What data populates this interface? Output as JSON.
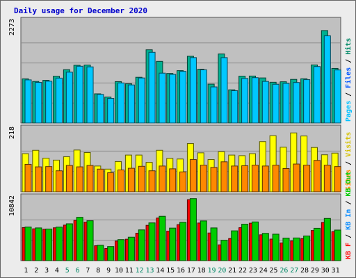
{
  "chart_data": {
    "type": "bar",
    "title": "Daily usage for December 2020",
    "days": [
      "1",
      "2",
      "3",
      "4",
      "5",
      "6",
      "7",
      "8",
      "9",
      "10",
      "11",
      "12",
      "13",
      "14",
      "15",
      "16",
      "17",
      "18",
      "19",
      "20",
      "21",
      "22",
      "23",
      "24",
      "25",
      "26",
      "27",
      "28",
      "29",
      "30",
      "31"
    ],
    "weekend_days": [
      "5",
      "6",
      "12",
      "13",
      "19",
      "20",
      "26",
      "27"
    ],
    "panels": [
      {
        "id": "top",
        "max_label": "2273",
        "ymax": 2273,
        "legend": [
          {
            "text": "Pages",
            "color": "#00c0ff"
          },
          {
            "text": "Files",
            "color": "#0055ff"
          },
          {
            "text": "Hits",
            "color": "#008866"
          }
        ],
        "separator": " / ",
        "series": [
          {
            "name": "Hits",
            "color": "#00b090",
            "values": [
              1003,
              944,
              970,
              1061,
              1212,
              1312,
              1317,
              663,
              590,
              940,
              891,
              1039,
              1663,
              1400,
              1126,
              1190,
              1516,
              1223,
              883,
              1568,
              754,
              1065,
              1067,
              1024,
              926,
              937,
              991,
              1005,
              1320,
              2100,
              1240
            ]
          },
          {
            "name": "Pages",
            "color": "#00c8ff",
            "values": [
              980,
              923,
              950,
              1020,
              1155,
              1290,
              1275,
              650,
              560,
              910,
              865,
              1023,
              1606,
              1133,
              1105,
              1173,
              1486,
              1208,
              820,
              1485,
              734,
              1012,
              1030,
              945,
              880,
              900,
              920,
              985,
              1283,
              1980,
              1205
            ]
          }
        ]
      },
      {
        "id": "mid",
        "max_label": "218",
        "ymax": 218,
        "legend": [
          {
            "text": "Sites",
            "color": "#ff8800"
          },
          {
            "text": "Visits",
            "color": "#d4c000"
          }
        ],
        "separator": " / ",
        "series": [
          {
            "name": "Visits",
            "color": "#ffff00",
            "values": [
              136,
              148,
              120,
              113,
              125,
              149,
              140,
              92,
              81,
              108,
              131,
              131,
              105,
              148,
              119,
              117,
              172,
              139,
              115,
              143,
              131,
              129,
              136,
              179,
              200,
              159,
              210,
              199,
              158,
              132,
              138
            ]
          },
          {
            "name": "Sites",
            "color": "#ff8800",
            "values": [
              98,
              89,
              90,
              75,
              94,
              89,
              94,
              81,
              68,
              78,
              84,
              91,
              75,
              92,
              82,
              71,
              115,
              95,
              87,
              107,
              92,
              93,
              95,
              92,
              95,
              83,
              99,
              95,
              112,
              95,
              90
            ]
          }
        ]
      },
      {
        "id": "bot",
        "max_label": "10842",
        "ymax": 10842,
        "legend": [
          {
            "text": "KB F",
            "color": "#ff0000"
          },
          {
            "text": "KB In",
            "color": "#0088ff"
          },
          {
            "text": "KB Out",
            "color": "#00cc00"
          }
        ],
        "separator": " / ",
        "series": [
          {
            "name": "KB F",
            "color": "#ff0000",
            "values": [
              5860,
              5640,
              5560,
              5820,
              6300,
              7140,
              6830,
              2640,
              2150,
              3470,
              3800,
              4860,
              6260,
              7550,
              5230,
              6380,
              10800,
              6670,
              4900,
              2800,
              3920,
              5840,
              6640,
              4580,
              3820,
              3130,
              3490,
              3900,
              5340,
              6770,
              5140
            ]
          },
          {
            "name": "KB Out",
            "color": "#00cc00",
            "values": [
              5950,
              5800,
              5600,
              5940,
              6530,
              7680,
              7070,
              2720,
              2500,
              3730,
              4160,
              5450,
              6690,
              7860,
              5770,
              6790,
              11000,
              7040,
              5800,
              3600,
              5280,
              6460,
              6860,
              4830,
              4690,
              3990,
              4020,
              4370,
              5740,
              7480,
              5420
            ]
          }
        ]
      }
    ]
  }
}
